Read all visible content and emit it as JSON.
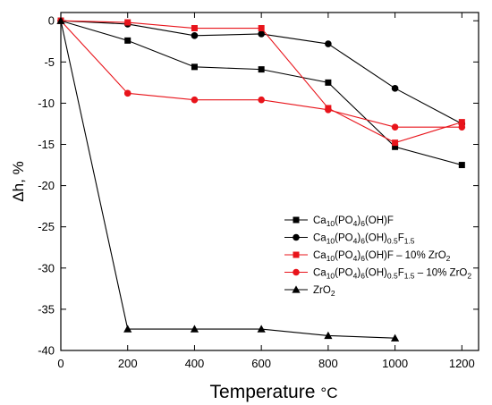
{
  "chart_data": {
    "type": "line",
    "xlabel": "Temperature",
    "xlabel_unit": "°C",
    "ylabel": "Δh, %",
    "xlim": [
      0,
      1250
    ],
    "ylim": [
      -40,
      1
    ],
    "xticks": [
      0,
      200,
      400,
      600,
      800,
      1000,
      1200
    ],
    "yticks": [
      0,
      -5,
      -10,
      -15,
      -20,
      -25,
      -30,
      -35,
      -40
    ],
    "legend_position": "lower-right",
    "grid": false,
    "series": [
      {
        "name": "Ca10(PO4)6(OH)F",
        "label_parts": [
          [
            "Ca",
            ""
          ],
          [
            "10",
            "sub"
          ],
          [
            "(PO",
            ""
          ],
          [
            "4",
            "sub"
          ],
          [
            ")",
            ""
          ],
          [
            "6",
            "sub"
          ],
          [
            "(OH)F",
            ""
          ]
        ],
        "color": "#000000",
        "marker": "square",
        "x": [
          0,
          200,
          400,
          600,
          800,
          1000,
          1200
        ],
        "y": [
          0,
          -2.4,
          -5.6,
          -5.9,
          -7.5,
          -15.3,
          -17.5
        ]
      },
      {
        "name": "Ca10(PO4)6(OH)0.5F1.5",
        "label_parts": [
          [
            "Ca",
            ""
          ],
          [
            "10",
            "sub"
          ],
          [
            "(PO",
            ""
          ],
          [
            "4",
            "sub"
          ],
          [
            ")",
            ""
          ],
          [
            "6",
            "sub"
          ],
          [
            "(OH)",
            ""
          ],
          [
            "0.5",
            "sub"
          ],
          [
            "F",
            ""
          ],
          [
            "1.5",
            "sub"
          ]
        ],
        "color": "#000000",
        "marker": "circle",
        "x": [
          0,
          200,
          400,
          600,
          800,
          1000,
          1200
        ],
        "y": [
          0,
          -0.4,
          -1.8,
          -1.6,
          -2.8,
          -8.2,
          -12.5
        ]
      },
      {
        "name": "Ca10(PO4)6(OH)F – 10% ZrO2",
        "label_parts": [
          [
            "Ca",
            ""
          ],
          [
            "10",
            "sub"
          ],
          [
            "(PO",
            ""
          ],
          [
            "4",
            "sub"
          ],
          [
            ")",
            ""
          ],
          [
            "6",
            "sub"
          ],
          [
            "(OH)F – 10% ZrO",
            ""
          ],
          [
            "2",
            "sub"
          ]
        ],
        "color": "#e8141b",
        "marker": "square",
        "x": [
          0,
          200,
          400,
          600,
          800,
          1000,
          1200
        ],
        "y": [
          0,
          -0.2,
          -0.9,
          -0.9,
          -10.6,
          -14.8,
          -12.3
        ]
      },
      {
        "name": "Ca10(PO4)6(OH)0.5F1.5 – 10% ZrO2",
        "label_parts": [
          [
            "Ca",
            ""
          ],
          [
            "10",
            "sub"
          ],
          [
            "(PO",
            ""
          ],
          [
            "4",
            "sub"
          ],
          [
            ")",
            ""
          ],
          [
            "6",
            "sub"
          ],
          [
            "(OH)",
            ""
          ],
          [
            "0.5",
            "sub"
          ],
          [
            "F",
            ""
          ],
          [
            "1.5",
            "sub"
          ],
          [
            " – 10% ZrO",
            ""
          ],
          [
            "2",
            "sub"
          ]
        ],
        "color": "#e8141b",
        "marker": "circle",
        "x": [
          0,
          200,
          400,
          600,
          800,
          1000,
          1200
        ],
        "y": [
          0,
          -8.8,
          -9.6,
          -9.6,
          -10.8,
          -12.9,
          -12.9
        ]
      },
      {
        "name": "ZrO2",
        "label_parts": [
          [
            "ZrO",
            ""
          ],
          [
            "2",
            "sub"
          ]
        ],
        "color": "#000000",
        "marker": "triangle",
        "x": [
          0,
          200,
          400,
          600,
          800,
          1000
        ],
        "y": [
          0,
          -37.4,
          -37.4,
          -37.4,
          -38.2,
          -38.5
        ]
      }
    ]
  }
}
